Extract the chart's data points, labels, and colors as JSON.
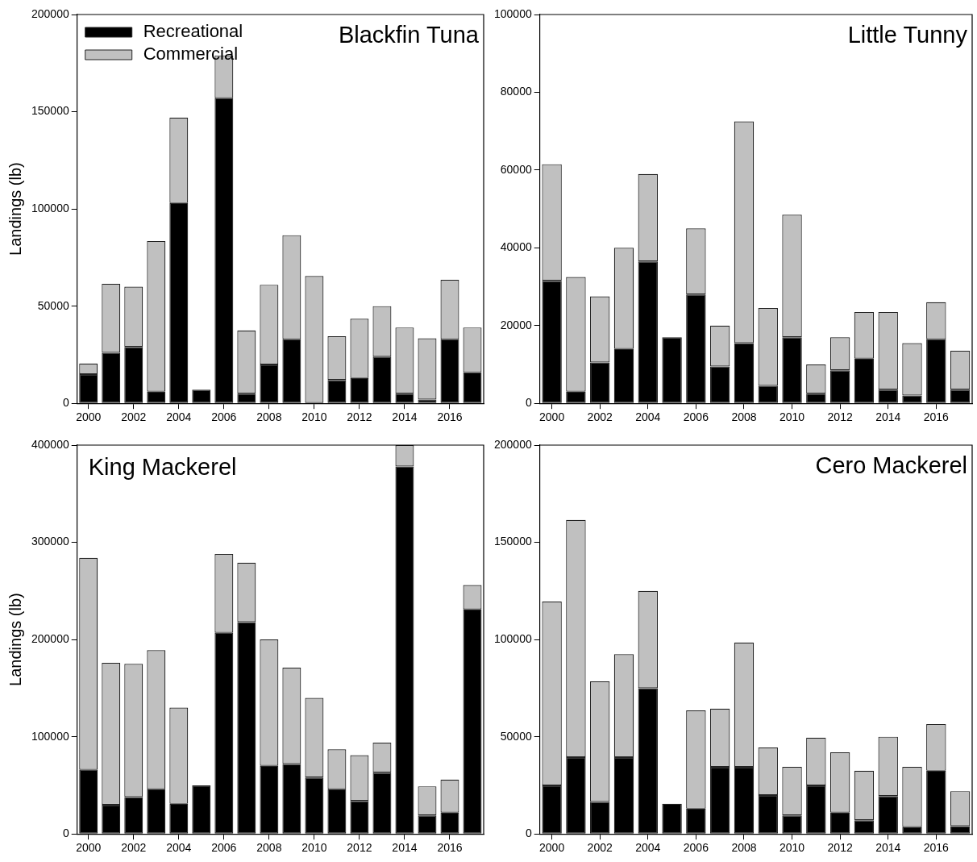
{
  "chart_data": [
    {
      "type": "bar",
      "stacked": true,
      "title": "Blackfin Tuna",
      "ylabel": "Landings (lb)",
      "legend": "top left",
      "grid": false,
      "categories": [
        "2000",
        null,
        "2002",
        null,
        "2004",
        null,
        "2006",
        null,
        "2008",
        null,
        "2010",
        null,
        "2012",
        null,
        "2014",
        null,
        "2016",
        null
      ],
      "ylim": [
        0,
        200000
      ],
      "yticks": [
        0,
        50000,
        100000,
        150000,
        200000
      ],
      "series": [
        {
          "name": "Recreational",
          "color": "#000000",
          "values": [
            15000,
            26000,
            29000,
            6000,
            103000,
            7000,
            157000,
            5000,
            20000,
            33000,
            0,
            12000,
            13000,
            24000,
            5000,
            2000,
            33000,
            16000
          ]
        },
        {
          "name": "Commercial",
          "color": "#c0c0c0",
          "values": [
            5500,
            35500,
            31000,
            77500,
            44000,
            0,
            22000,
            32500,
            41000,
            53500,
            65500,
            22500,
            30500,
            26000,
            34000,
            31500,
            30500,
            23000
          ]
        }
      ]
    },
    {
      "type": "bar",
      "stacked": true,
      "title": "Little Tunny",
      "grid": false,
      "categories": [
        "2000",
        null,
        "2002",
        null,
        "2004",
        null,
        "2006",
        null,
        "2008",
        null,
        "2010",
        null,
        "2012",
        null,
        "2014",
        null,
        "2016",
        null
      ],
      "ylim": [
        0,
        100000
      ],
      "yticks": [
        0,
        20000,
        40000,
        60000,
        80000,
        100000
      ],
      "series": [
        {
          "color": "#000000",
          "values": [
            31500,
            3000,
            10500,
            14000,
            36500,
            17000,
            28000,
            9500,
            15500,
            4500,
            17000,
            2500,
            8500,
            11500,
            3500,
            2000,
            16500,
            3500
          ]
        },
        {
          "color": "#c0c0c0",
          "values": [
            30000,
            29500,
            17000,
            26000,
            22500,
            0,
            17000,
            10500,
            57000,
            20000,
            31500,
            7500,
            8500,
            12000,
            20000,
            13500,
            9500,
            10000
          ]
        }
      ]
    },
    {
      "type": "bar",
      "stacked": true,
      "title": "King Mackerel",
      "ylabel": "Landings (lb)",
      "grid": false,
      "categories": [
        "2000",
        null,
        "2002",
        null,
        "2004",
        null,
        "2006",
        null,
        "2008",
        null,
        "2010",
        null,
        "2012",
        null,
        "2014",
        null,
        "2016",
        null
      ],
      "ylim": [
        0,
        400000
      ],
      "yticks": [
        0,
        100000,
        200000,
        300000,
        400000
      ],
      "series": [
        {
          "color": "#000000",
          "values": [
            66000,
            30000,
            38000,
            46000,
            31000,
            50000,
            207000,
            218000,
            70000,
            72000,
            58000,
            46000,
            34000,
            63000,
            378000,
            19000,
            22000,
            231000
          ]
        },
        {
          "color": "#c0c0c0",
          "values": [
            218000,
            146000,
            137000,
            143000,
            99000,
            0,
            81000,
            61000,
            130000,
            99000,
            82000,
            41000,
            47000,
            31000,
            22000,
            30000,
            34000,
            25000
          ]
        }
      ]
    },
    {
      "type": "bar",
      "stacked": true,
      "title": "Cero Mackerel",
      "grid": false,
      "categories": [
        "2000",
        null,
        "2002",
        null,
        "2004",
        null,
        "2006",
        null,
        "2008",
        null,
        "2010",
        null,
        "2012",
        null,
        "2014",
        null,
        "2016",
        null
      ],
      "ylim": [
        0,
        200000
      ],
      "yticks": [
        0,
        50000,
        100000,
        150000,
        200000
      ],
      "series": [
        {
          "color": "#000000",
          "values": [
            25000,
            39500,
            16500,
            39500,
            75000,
            15500,
            13000,
            34500,
            34500,
            20000,
            9500,
            25000,
            11000,
            7000,
            19500,
            3500,
            32500,
            4000
          ]
        },
        {
          "color": "#c0c0c0",
          "values": [
            94500,
            122000,
            62000,
            53000,
            50000,
            0,
            50500,
            30000,
            64000,
            24500,
            25000,
            24500,
            31000,
            25500,
            30500,
            31000,
            24000,
            18000
          ]
        }
      ]
    }
  ]
}
